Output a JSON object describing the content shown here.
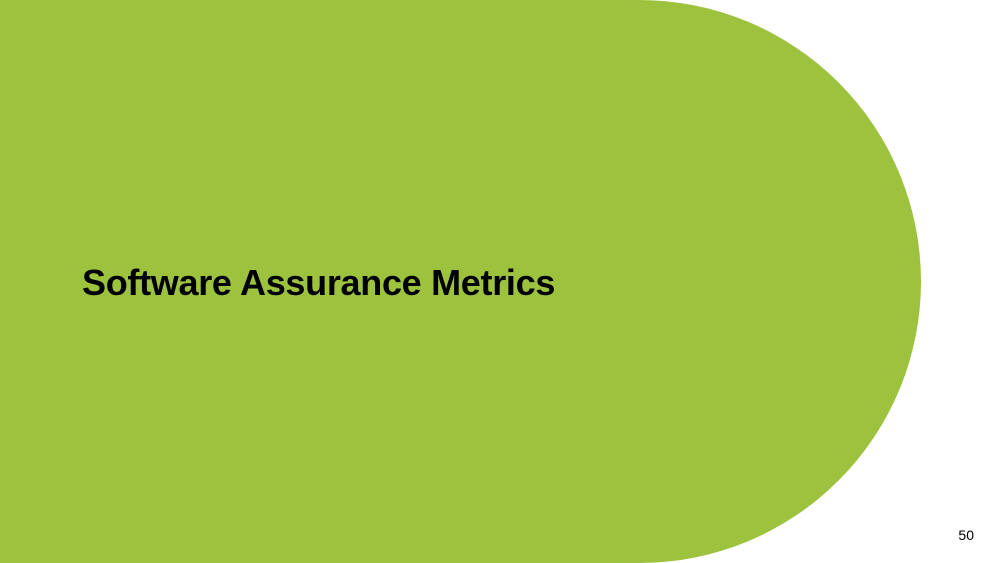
{
  "slide": {
    "title": "Software Assurance Metrics",
    "page_number": "50"
  },
  "colors": {
    "accent_green": "#9dc33e",
    "background": "#ffffff",
    "text": "#000000"
  }
}
